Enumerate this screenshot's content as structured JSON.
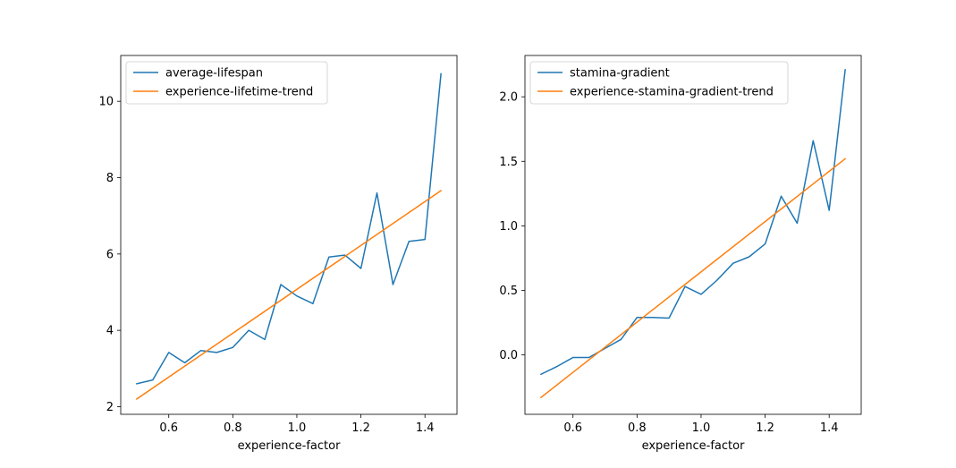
{
  "chart_data": [
    {
      "type": "line",
      "title": "",
      "xlabel": "experience-factor",
      "ylabel": "",
      "xlim": [
        0.45,
        1.5
      ],
      "ylim": [
        1.8,
        11.2
      ],
      "xticks": [
        0.6,
        0.8,
        1.0,
        1.2,
        1.4
      ],
      "xtick_labels": [
        "0.6",
        "0.8",
        "1.0",
        "1.2",
        "1.4"
      ],
      "yticks": [
        2,
        4,
        6,
        8,
        10
      ],
      "ytick_labels": [
        "2",
        "4",
        "6",
        "8",
        "10"
      ],
      "grid": false,
      "legend": "top-left",
      "series": [
        {
          "name": "average-lifespan",
          "color": "#1f77b4",
          "x": [
            0.5,
            0.55,
            0.6,
            0.65,
            0.7,
            0.75,
            0.8,
            0.85,
            0.9,
            0.95,
            1.0,
            1.05,
            1.1,
            1.15,
            1.2,
            1.25,
            1.3,
            1.35,
            1.4,
            1.45
          ],
          "y": [
            2.6,
            2.7,
            3.42,
            3.15,
            3.47,
            3.42,
            3.55,
            4.0,
            3.76,
            5.2,
            4.9,
            4.7,
            5.92,
            5.97,
            5.62,
            7.6,
            5.2,
            6.33,
            6.38,
            10.72
          ]
        },
        {
          "name": "experience-lifetime-trend",
          "color": "#ff7f0e",
          "x": [
            0.5,
            1.45
          ],
          "y": [
            2.2,
            7.66
          ]
        }
      ]
    },
    {
      "type": "line",
      "title": "",
      "xlabel": "experience-factor",
      "ylabel": "",
      "xlim": [
        0.45,
        1.5
      ],
      "ylim": [
        -0.46,
        2.32
      ],
      "xticks": [
        0.6,
        0.8,
        1.0,
        1.2,
        1.4
      ],
      "xtick_labels": [
        "0.6",
        "0.8",
        "1.0",
        "1.2",
        "1.4"
      ],
      "yticks": [
        0.0,
        0.5,
        1.0,
        1.5,
        2.0
      ],
      "ytick_labels": [
        "0.0",
        "0.5",
        "1.0",
        "1.5",
        "2.0"
      ],
      "grid": false,
      "legend": "top-left",
      "series": [
        {
          "name": "stamina-gradient",
          "color": "#1f77b4",
          "x": [
            0.5,
            0.55,
            0.6,
            0.65,
            0.7,
            0.75,
            0.8,
            0.85,
            0.9,
            0.95,
            1.0,
            1.05,
            1.1,
            1.15,
            1.2,
            1.25,
            1.3,
            1.35,
            1.4,
            1.45
          ],
          "y": [
            -0.15,
            -0.09,
            -0.02,
            -0.02,
            0.05,
            0.12,
            0.29,
            0.29,
            0.285,
            0.53,
            0.47,
            0.58,
            0.71,
            0.76,
            0.86,
            1.23,
            1.02,
            1.66,
            1.12,
            2.21
          ]
        },
        {
          "name": "experience-stamina-gradient-trend",
          "color": "#ff7f0e",
          "x": [
            0.5,
            1.45
          ],
          "y": [
            -0.33,
            1.52
          ]
        }
      ]
    }
  ]
}
